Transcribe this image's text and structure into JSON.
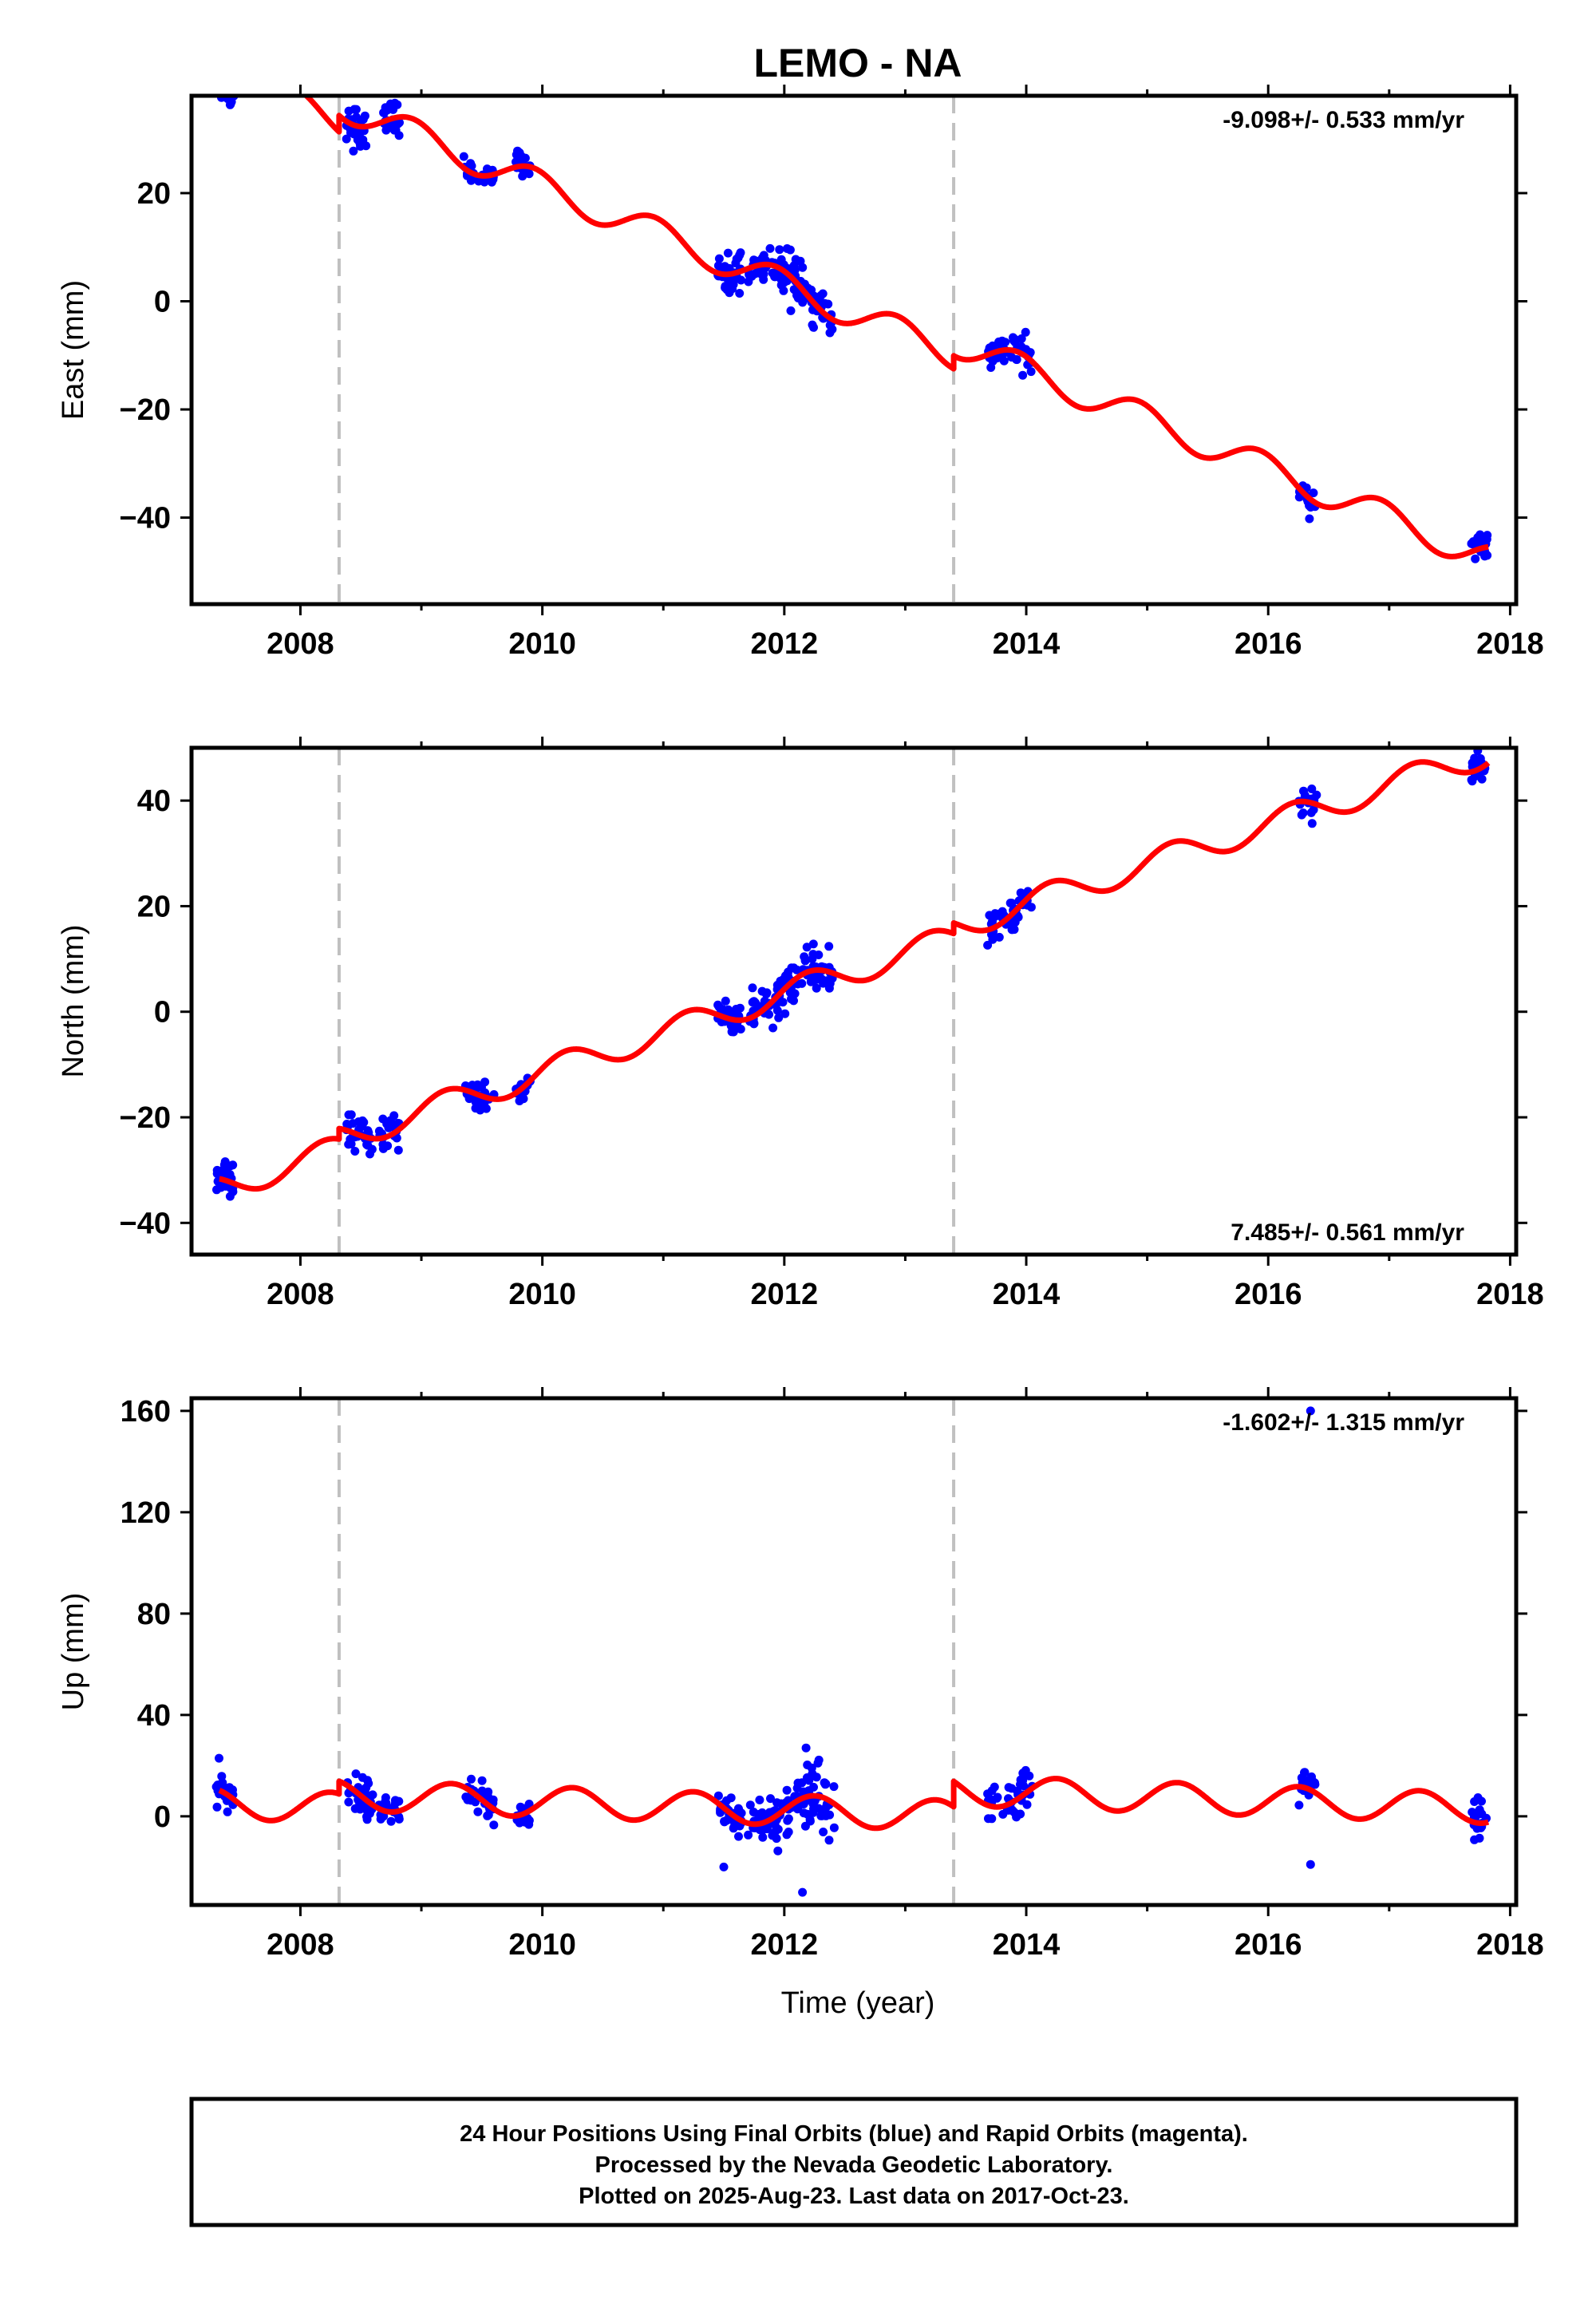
{
  "title": "LEMO - NA",
  "xlabel": "Time (year)",
  "footer": {
    "line1": "24 Hour Positions Using Final Orbits (blue) and Rapid Orbits (magenta).",
    "line2": "Processed by the Nevada Geodetic Laboratory.",
    "line3": "Plotted on 2025-Aug-23. Last data on 2017-Oct-23."
  },
  "colors": {
    "data_points": "#0000ff",
    "model_line": "#ff0000",
    "offset_lines": "#c0c0c0",
    "frame": "#000000"
  },
  "chart_data": [
    {
      "type": "scatter",
      "ylabel": "East (mm)",
      "rate_label": "-9.098+/- 0.533 mm/yr",
      "rate_position": "top-right",
      "xlim": [
        2007.1,
        2018.05
      ],
      "ylim": [
        -56,
        38
      ],
      "xticks": [
        2008,
        2010,
        2012,
        2014,
        2016,
        2018
      ],
      "yticks": [
        -40,
        -20,
        0,
        20
      ],
      "offsets": [
        2008.32,
        2013.4
      ],
      "model": {
        "trend": -9.098,
        "annual_amp": 2.8,
        "annual_phase": 2.0,
        "semiannual_amp": 0,
        "intercept_2012": 0,
        "steps": [
          {
            "t": 2008.32,
            "dy": 3.0
          },
          {
            "t": 2013.4,
            "dy": 2.4
          }
        ]
      },
      "clusters": [
        {
          "t0": 2007.3,
          "t1": 2007.45,
          "n": 25,
          "sd": 1.6
        },
        {
          "t0": 2008.38,
          "t1": 2008.55,
          "n": 30,
          "sd": 2.0
        },
        {
          "t0": 2008.65,
          "t1": 2008.82,
          "n": 25,
          "sd": 1.5
        },
        {
          "t0": 2009.35,
          "t1": 2009.6,
          "n": 30,
          "sd": 1.0
        },
        {
          "t0": 2009.78,
          "t1": 2009.9,
          "n": 18,
          "sd": 1.5
        },
        {
          "t0": 2011.45,
          "t1": 2011.65,
          "n": 35,
          "sd": 1.8
        },
        {
          "t0": 2011.7,
          "t1": 2012.05,
          "n": 55,
          "sd": 1.6
        },
        {
          "t0": 2012.05,
          "t1": 2012.42,
          "n": 55,
          "sd": 1.8
        },
        {
          "t0": 2013.68,
          "t1": 2014.05,
          "n": 45,
          "sd": 1.6
        },
        {
          "t0": 2016.25,
          "t1": 2016.4,
          "n": 18,
          "sd": 1.3
        },
        {
          "t0": 2017.68,
          "t1": 2017.82,
          "n": 22,
          "sd": 1.5
        }
      ]
    },
    {
      "type": "scatter",
      "ylabel": "North (mm)",
      "rate_label": "7.485+/- 0.561 mm/yr",
      "rate_position": "bottom-right",
      "xlim": [
        2007.1,
        2018.05
      ],
      "ylim": [
        -46,
        50
      ],
      "xticks": [
        2008,
        2010,
        2012,
        2014,
        2016,
        2018
      ],
      "yticks": [
        -40,
        -20,
        0,
        20,
        40
      ],
      "offsets": [
        2008.32,
        2013.4
      ],
      "model": {
        "trend": 7.485,
        "annual_amp": 2.6,
        "annual_phase": 0.3,
        "semiannual_amp": 0,
        "intercept_2012": 1.5,
        "steps": [
          {
            "t": 2008.32,
            "dy": 2.0
          },
          {
            "t": 2013.4,
            "dy": 2.0
          }
        ]
      },
      "clusters": [
        {
          "t0": 2007.3,
          "t1": 2007.45,
          "n": 25,
          "sd": 2.2
        },
        {
          "t0": 2008.38,
          "t1": 2008.6,
          "n": 30,
          "sd": 1.4
        },
        {
          "t0": 2008.65,
          "t1": 2008.82,
          "n": 25,
          "sd": 1.5
        },
        {
          "t0": 2009.35,
          "t1": 2009.6,
          "n": 30,
          "sd": 1.5
        },
        {
          "t0": 2009.78,
          "t1": 2009.9,
          "n": 18,
          "sd": 1.8
        },
        {
          "t0": 2011.45,
          "t1": 2011.65,
          "n": 35,
          "sd": 1.5
        },
        {
          "t0": 2011.7,
          "t1": 2012.05,
          "n": 55,
          "sd": 1.8
        },
        {
          "t0": 2012.05,
          "t1": 2012.42,
          "n": 55,
          "sd": 2.0
        },
        {
          "t0": 2013.68,
          "t1": 2014.05,
          "n": 45,
          "sd": 1.6
        },
        {
          "t0": 2016.25,
          "t1": 2016.4,
          "n": 18,
          "sd": 1.6
        },
        {
          "t0": 2017.68,
          "t1": 2017.82,
          "n": 22,
          "sd": 1.6
        }
      ]
    },
    {
      "type": "scatter",
      "ylabel": "Up (mm)",
      "rate_label": "-1.602+/- 1.315 mm/yr",
      "rate_position": "top-right",
      "xlim": [
        2007.1,
        2018.05
      ],
      "ylim": [
        -35,
        165
      ],
      "xticks": [
        2008,
        2010,
        2012,
        2014,
        2016,
        2018
      ],
      "yticks": [
        0,
        40,
        80,
        120,
        160
      ],
      "offsets": [
        2008.32,
        2013.4
      ],
      "model": {
        "trend": -1.602,
        "annual_amp": 6.0,
        "annual_phase": 0.0,
        "semiannual_amp": 0,
        "intercept_2012": -2.5,
        "steps": [
          {
            "t": 2008.32,
            "dy": 5.0
          },
          {
            "t": 2013.4,
            "dy": 10.0
          }
        ]
      },
      "clusters": [
        {
          "t0": 2007.3,
          "t1": 2007.45,
          "n": 25,
          "sd": 4.0
        },
        {
          "t0": 2008.38,
          "t1": 2008.6,
          "n": 30,
          "sd": 3.5
        },
        {
          "t0": 2008.65,
          "t1": 2008.82,
          "n": 25,
          "sd": 3.5
        },
        {
          "t0": 2009.35,
          "t1": 2009.6,
          "n": 30,
          "sd": 3.0
        },
        {
          "t0": 2009.78,
          "t1": 2009.9,
          "n": 18,
          "sd": 3.0
        },
        {
          "t0": 2011.45,
          "t1": 2011.65,
          "n": 35,
          "sd": 4.0
        },
        {
          "t0": 2011.7,
          "t1": 2012.05,
          "n": 55,
          "sd": 5.0
        },
        {
          "t0": 2012.05,
          "t1": 2012.42,
          "n": 55,
          "sd": 6.0
        },
        {
          "t0": 2013.68,
          "t1": 2014.05,
          "n": 45,
          "sd": 5.0
        },
        {
          "t0": 2016.25,
          "t1": 2016.4,
          "n": 18,
          "sd": 4.0
        },
        {
          "t0": 2017.68,
          "t1": 2017.82,
          "n": 22,
          "sd": 4.5
        }
      ],
      "extra_points": [
        {
          "x": 2016.35,
          "y": 160
        },
        {
          "x": 2012.18,
          "y": 27
        },
        {
          "x": 2012.15,
          "y": -30
        },
        {
          "x": 2011.5,
          "y": -20
        },
        {
          "x": 2016.35,
          "y": -19
        }
      ]
    }
  ]
}
